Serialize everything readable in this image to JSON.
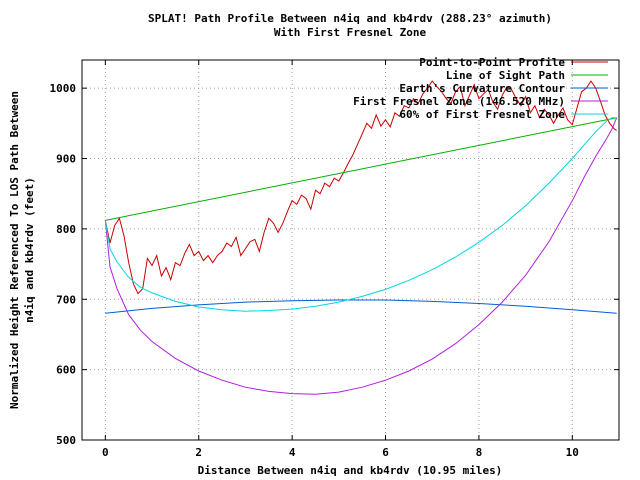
{
  "chart_data": {
    "type": "line",
    "title": "SPLAT! Path Profile Between n4iq and kb4rdv (288.23° azimuth)",
    "subtitle": "With First Fresnel Zone",
    "xlabel": "Distance Between n4iq and kb4rdv (10.95 miles)",
    "ylabel_line1": "Normalized Height Referenced To LOS Path Between",
    "ylabel_line2": "n4iq and kb4rdv (feet)",
    "xlim": [
      -0.5,
      11.0
    ],
    "ylim": [
      500,
      1040
    ],
    "xticks": [
      0,
      2,
      4,
      6,
      8,
      10
    ],
    "xtick_labels": [
      "0",
      "2",
      "4",
      "6",
      "8",
      "10"
    ],
    "yticks": [
      500,
      600,
      700,
      800,
      900,
      1000
    ],
    "ytick_labels": [
      "500",
      "600",
      "700",
      "800",
      "900",
      "1000"
    ],
    "grid": true,
    "legend_position": "top-right",
    "series": [
      {
        "name": "Point-to-Point Profile",
        "color": "#cc0000",
        "x": [
          0.0,
          0.1,
          0.2,
          0.3,
          0.4,
          0.5,
          0.6,
          0.7,
          0.8,
          0.9,
          1.0,
          1.1,
          1.2,
          1.3,
          1.4,
          1.5,
          1.6,
          1.7,
          1.8,
          1.9,
          2.0,
          2.1,
          2.2,
          2.3,
          2.4,
          2.5,
          2.6,
          2.7,
          2.8,
          2.9,
          3.0,
          3.1,
          3.2,
          3.3,
          3.4,
          3.5,
          3.6,
          3.7,
          3.8,
          3.9,
          4.0,
          4.1,
          4.2,
          4.3,
          4.4,
          4.5,
          4.6,
          4.7,
          4.8,
          4.9,
          5.0,
          5.1,
          5.2,
          5.3,
          5.4,
          5.5,
          5.6,
          5.7,
          5.8,
          5.9,
          6.0,
          6.1,
          6.2,
          6.3,
          6.4,
          6.5,
          6.6,
          6.7,
          6.8,
          6.9,
          7.0,
          7.1,
          7.2,
          7.3,
          7.4,
          7.5,
          7.6,
          7.7,
          7.8,
          7.9,
          8.0,
          8.1,
          8.2,
          8.3,
          8.4,
          8.5,
          8.6,
          8.7,
          8.8,
          8.9,
          9.0,
          9.1,
          9.2,
          9.3,
          9.4,
          9.5,
          9.6,
          9.7,
          9.8,
          9.9,
          10.0,
          10.1,
          10.2,
          10.3,
          10.4,
          10.5,
          10.6,
          10.7,
          10.8,
          10.9,
          10.95
        ],
        "values": [
          812,
          780,
          805,
          815,
          790,
          752,
          722,
          708,
          715,
          758,
          748,
          762,
          733,
          745,
          728,
          752,
          748,
          765,
          778,
          762,
          768,
          755,
          762,
          752,
          762,
          768,
          780,
          775,
          788,
          762,
          772,
          782,
          785,
          768,
          795,
          815,
          808,
          795,
          808,
          825,
          840,
          835,
          848,
          843,
          828,
          855,
          850,
          865,
          860,
          872,
          868,
          880,
          893,
          905,
          920,
          935,
          950,
          943,
          962,
          946,
          955,
          945,
          965,
          960,
          975,
          972,
          985,
          978,
          992,
          1000,
          1010,
          1002,
          995,
          985,
          978,
          995,
          1002,
          975,
          990,
          1005,
          985,
          992,
          998,
          980,
          970,
          990,
          1002,
          998,
          985,
          975,
          988,
          965,
          975,
          958,
          970,
          962,
          950,
          962,
          972,
          955,
          948,
          972,
          995,
          1000,
          1010,
          1000,
          982,
          962,
          950,
          942,
          940
        ]
      },
      {
        "name": "Line of Sight Path",
        "color": "#00b000",
        "x": [
          0,
          10.95
        ],
        "values": [
          812,
          958
        ]
      },
      {
        "name": "Earth's Curvature Contour",
        "color": "#0060d0",
        "x": [
          0,
          1,
          2,
          3,
          4,
          5,
          6,
          7,
          8,
          9,
          10,
          10.95
        ],
        "values": [
          680,
          687,
          692,
          696,
          698,
          699,
          699,
          697,
          694,
          690,
          685,
          680
        ]
      },
      {
        "name": "First Fresnel Zone (146.520 MHz)",
        "color": "#b020e0",
        "x": [
          0,
          0.1,
          0.25,
          0.5,
          0.75,
          1,
          1.5,
          2,
          2.5,
          3,
          3.5,
          4,
          4.5,
          5,
          5.5,
          6,
          6.5,
          7,
          7.5,
          8,
          8.5,
          9,
          9.5,
          10,
          10.25,
          10.5,
          10.75,
          10.85,
          10.95
        ],
        "values": [
          812,
          746,
          715,
          678,
          656,
          640,
          616,
          598,
          585,
          575,
          569,
          566,
          565,
          568,
          575,
          585,
          598,
          615,
          637,
          664,
          696,
          734,
          782,
          840,
          873,
          903,
          930,
          942,
          958
        ]
      },
      {
        "name": "60% of First Fresnel Zone",
        "color": "#00d8e0",
        "x": [
          0,
          0.1,
          0.25,
          0.5,
          0.75,
          1,
          1.5,
          2,
          2.5,
          3,
          3.5,
          4,
          4.5,
          5,
          5.5,
          6,
          6.5,
          7,
          7.5,
          8,
          8.5,
          9,
          9.5,
          10,
          10.25,
          10.5,
          10.75,
          10.85,
          10.95
        ],
        "values": [
          812,
          772,
          753,
          731,
          717,
          709,
          697,
          689,
          685,
          683,
          684,
          686,
          690,
          696,
          704,
          714,
          727,
          742,
          760,
          781,
          805,
          833,
          865,
          900,
          919,
          938,
          954,
          958,
          958
        ]
      }
    ]
  }
}
